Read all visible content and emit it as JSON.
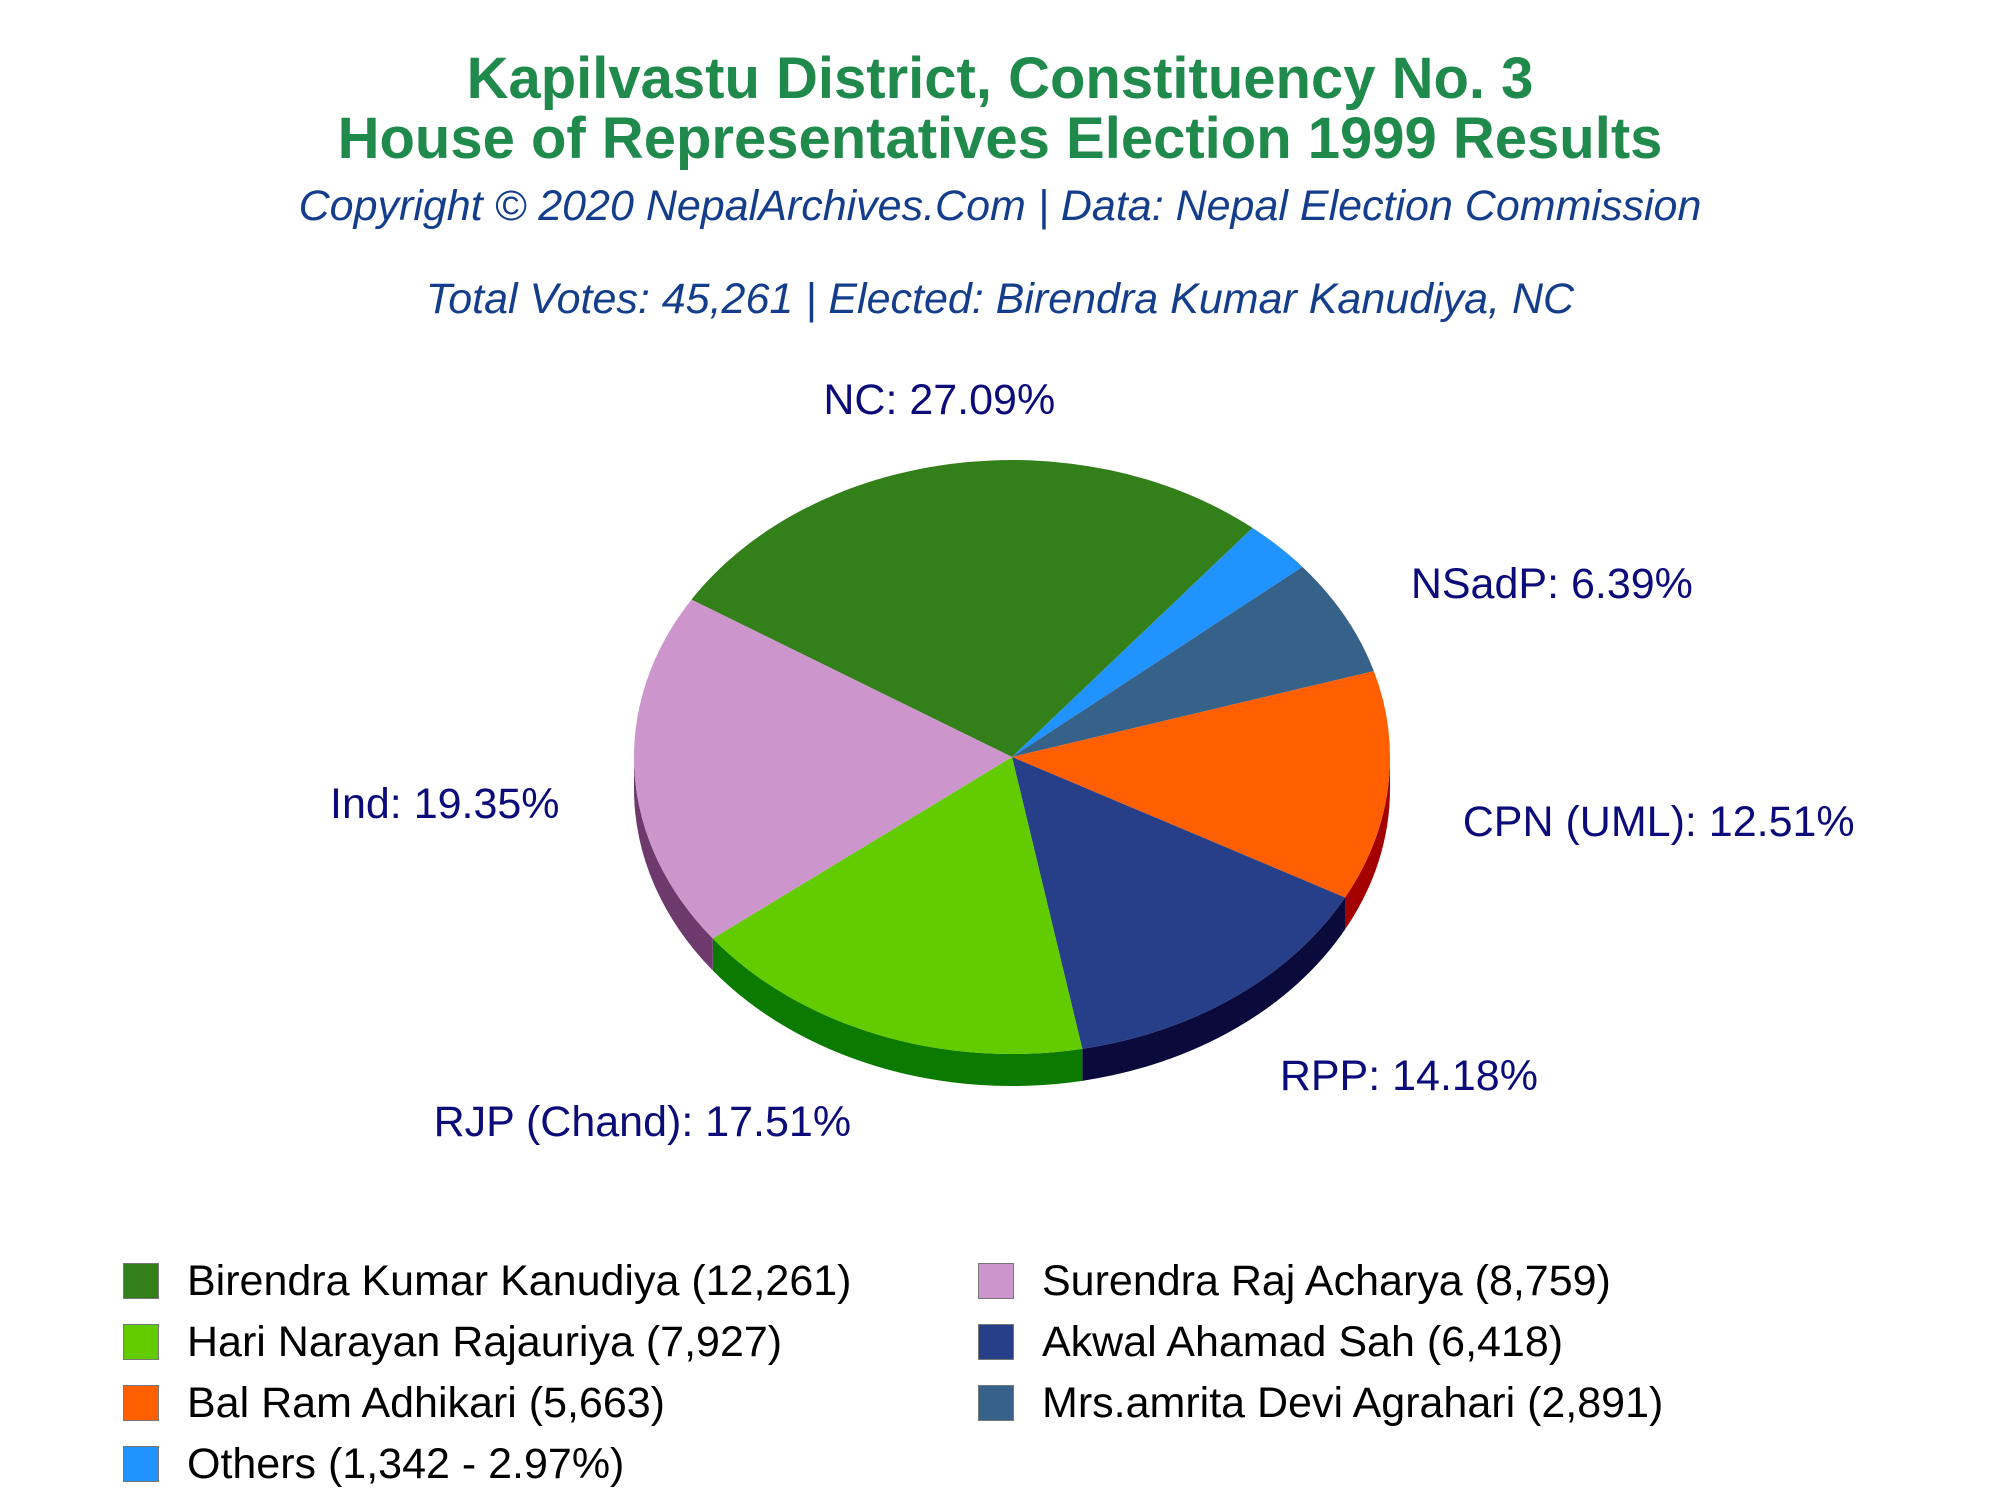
{
  "title": "Kapilvastu District, Constituency No. 3",
  "subtitle": "House of Representatives Election 1999 Results",
  "copyright": "Copyright © 2020 NepalArchives.Com | Data: Nepal Election Commission",
  "summary": "Total Votes: 45,261 | Elected: Birendra Kumar Kanudiya, NC",
  "chart_data": {
    "type": "pie",
    "total_votes": 45261,
    "slices": [
      {
        "party": "NC",
        "candidate": "Birendra Kumar Kanudiya",
        "votes": 12261,
        "percent": 27.09,
        "label": "NC: 27.09%",
        "legend": "Birendra Kumar Kanudiya (12,261)",
        "color": "#337f1a",
        "side": "#1e5a0e"
      },
      {
        "party": "Others",
        "candidate": "Others",
        "votes": 1342,
        "percent": 2.97,
        "label": "",
        "legend": "Others (1,342 - 2.97%)",
        "color": "#2193ff",
        "side": "#1462b0"
      },
      {
        "party": "NSadP",
        "candidate": "Mrs.amrita Devi Agrahari",
        "votes": 2891,
        "percent": 6.39,
        "label": "NSadP: 6.39%",
        "legend": "Mrs.amrita Devi Agrahari (2,891)",
        "color": "#366189",
        "side": "#1f3b57"
      },
      {
        "party": "CPN (UML)",
        "candidate": "Bal Ram Adhikari",
        "votes": 5663,
        "percent": 12.51,
        "label": "CPN (UML): 12.51%",
        "legend": "Bal Ram Adhikari (5,663)",
        "color": "#ff5f00",
        "side": "#a50000"
      },
      {
        "party": "RPP",
        "candidate": "Akwal Ahamad Sah",
        "votes": 6418,
        "percent": 14.18,
        "label": "RPP: 14.18%",
        "legend": "Akwal Ahamad Sah (6,418)",
        "color": "#263f88",
        "side": "#0a0a3c"
      },
      {
        "party": "RJP (Chand)",
        "candidate": "Hari Narayan Rajauriya",
        "votes": 7927,
        "percent": 17.51,
        "label": "RJP (Chand): 17.51%",
        "legend": "Hari Narayan Rajauriya (7,927)",
        "color": "#63cc00",
        "side": "#0a7a00"
      },
      {
        "party": "Ind",
        "candidate": "Surendra Raj Acharya",
        "votes": 8759,
        "percent": 19.35,
        "label": "Ind: 19.35%",
        "legend": "Surendra Raj Acharya (8,759)",
        "color": "#cc96cc",
        "side": "#6e3a6e"
      }
    ],
    "legend_order": [
      0,
      6,
      5,
      4,
      3,
      2,
      1
    ]
  },
  "colors": {
    "title": "#1f8a4c",
    "subtitle": "#143e8c",
    "slice_label": "#0b0b7a"
  }
}
